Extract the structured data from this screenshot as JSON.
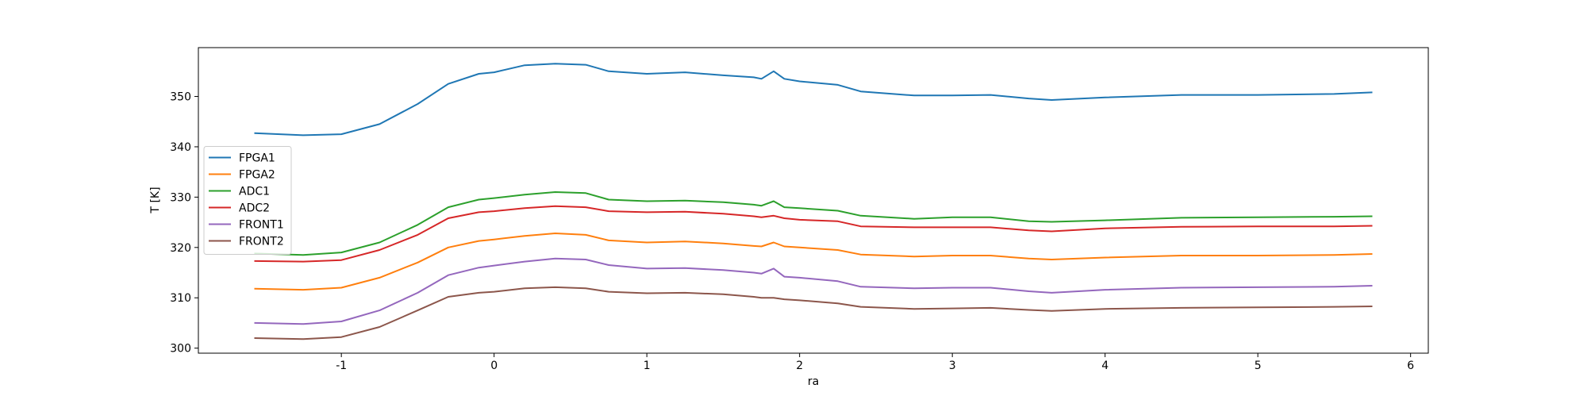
{
  "chart_data": {
    "type": "line",
    "xlabel": "ra",
    "ylabel": "T [K]",
    "x": [
      -1.57,
      -1.25,
      -1,
      -0.75,
      -0.5,
      -0.3,
      -0.1,
      0,
      0.2,
      0.4,
      0.6,
      0.75,
      1,
      1.25,
      1.5,
      1.7,
      1.75,
      1.83,
      1.9,
      2,
      2.25,
      2.4,
      2.75,
      3,
      3.25,
      3.5,
      3.65,
      4,
      4.5,
      5,
      5.5,
      5.75
    ],
    "series": [
      {
        "name": "FPGA1",
        "color": "#1f77b4",
        "values": [
          342.7,
          342.3,
          342.5,
          344.5,
          348.5,
          352.5,
          354.5,
          354.8,
          356.2,
          356.5,
          356.3,
          355,
          354.5,
          354.8,
          354.2,
          353.8,
          353.5,
          355,
          353.5,
          353,
          352.3,
          351,
          350.2,
          350.2,
          350.3,
          349.6,
          349.3,
          349.8,
          350.3,
          350.3,
          350.5,
          350.8
        ]
      },
      {
        "name": "FPGA2",
        "color": "#ff7f0e",
        "values": [
          311.8,
          311.6,
          312,
          314,
          317,
          320,
          321.3,
          321.6,
          322.3,
          322.8,
          322.5,
          321.4,
          321,
          321.2,
          320.8,
          320.3,
          320.2,
          321,
          320.2,
          320,
          319.5,
          318.6,
          318.2,
          318.4,
          318.4,
          317.8,
          317.6,
          318,
          318.4,
          318.4,
          318.5,
          318.7
        ]
      },
      {
        "name": "ADC1",
        "color": "#2ca02c",
        "values": [
          318.8,
          318.5,
          319,
          321,
          324.5,
          328,
          329.5,
          329.8,
          330.5,
          331,
          330.8,
          329.5,
          329.2,
          329.3,
          329,
          328.5,
          328.3,
          329.2,
          328,
          327.8,
          327.3,
          326.3,
          325.7,
          326,
          326,
          325.2,
          325.1,
          325.4,
          325.9,
          326,
          326.1,
          326.2
        ]
      },
      {
        "name": "ADC2",
        "color": "#d62728",
        "values": [
          317.3,
          317.2,
          317.5,
          319.5,
          322.5,
          325.8,
          327,
          327.2,
          327.8,
          328.2,
          328,
          327.2,
          327,
          327.1,
          326.7,
          326.2,
          326,
          326.3,
          325.8,
          325.5,
          325.2,
          324.2,
          324,
          324,
          324,
          323.4,
          323.2,
          323.8,
          324.1,
          324.2,
          324.2,
          324.3
        ]
      },
      {
        "name": "FRONT1",
        "color": "#9467bd",
        "values": [
          305,
          304.8,
          305.3,
          307.5,
          311,
          314.5,
          316,
          316.4,
          317.2,
          317.8,
          317.6,
          316.5,
          315.8,
          315.9,
          315.5,
          315,
          314.8,
          315.8,
          314.2,
          314,
          313.3,
          312.2,
          311.9,
          312,
          312,
          311.3,
          311,
          311.6,
          312,
          312.1,
          312.2,
          312.4
        ]
      },
      {
        "name": "FRONT2",
        "color": "#8c564b",
        "values": [
          302,
          301.8,
          302.2,
          304.2,
          307.5,
          310.2,
          311,
          311.2,
          311.9,
          312.1,
          311.9,
          311.2,
          310.9,
          311,
          310.7,
          310.2,
          310,
          310,
          309.7,
          309.5,
          308.9,
          308.2,
          307.8,
          307.9,
          308,
          307.6,
          307.4,
          307.8,
          308,
          308.1,
          308.2,
          308.3
        ]
      }
    ],
    "xlim": [
      -1.936,
      6.116
    ],
    "xticks": [
      -1,
      0,
      1,
      2,
      3,
      4,
      5,
      6
    ],
    "ylim": [
      299,
      359.7
    ],
    "yticks": [
      300,
      310,
      320,
      330,
      340,
      350
    ],
    "legend": "center left"
  }
}
